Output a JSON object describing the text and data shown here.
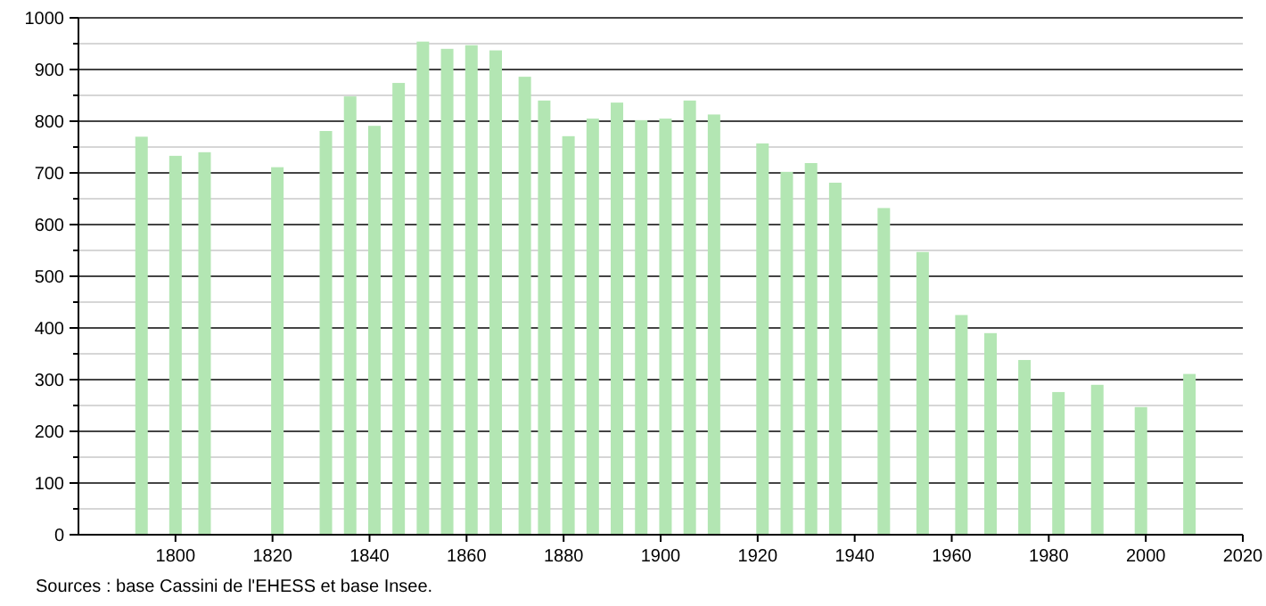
{
  "chart_data": {
    "type": "bar",
    "x": [
      1793,
      1800,
      1806,
      1821,
      1831,
      1836,
      1841,
      1846,
      1851,
      1856,
      1861,
      1866,
      1872,
      1876,
      1881,
      1886,
      1891,
      1896,
      1901,
      1906,
      1911,
      1921,
      1926,
      1931,
      1936,
      1946,
      1954,
      1962,
      1968,
      1975,
      1982,
      1990,
      1999,
      2009
    ],
    "values": [
      770,
      733,
      740,
      711,
      781,
      848,
      791,
      874,
      954,
      940,
      947,
      937,
      886,
      840,
      771,
      805,
      836,
      802,
      805,
      840,
      813,
      757,
      702,
      719,
      681,
      632,
      547,
      425,
      390,
      338,
      276,
      290,
      247,
      311
    ],
    "color": "#b3e6b3",
    "xlim": [
      1780,
      2020
    ],
    "xticks": [
      1800,
      1820,
      1840,
      1860,
      1880,
      1900,
      1920,
      1940,
      1960,
      1980,
      2000,
      2020
    ],
    "ylim": [
      0,
      1000
    ],
    "yticks": [
      0,
      {
        "value": 50,
        "label": null
      },
      100,
      {
        "value": 150,
        "label": null
      },
      200,
      {
        "value": 250,
        "label": null
      },
      300,
      {
        "value": 350,
        "label": null
      },
      400,
      {
        "value": 450,
        "label": null
      },
      500,
      {
        "value": 550,
        "label": null
      },
      600,
      {
        "value": 650,
        "label": null
      },
      700,
      {
        "value": 750,
        "label": null
      },
      800,
      {
        "value": 850,
        "label": null
      },
      900,
      {
        "value": 950,
        "label": null
      },
      1000
    ],
    "grid": "y",
    "annotations": [
      "Sources : base Cassini de l'EHESS et base Insee."
    ]
  }
}
